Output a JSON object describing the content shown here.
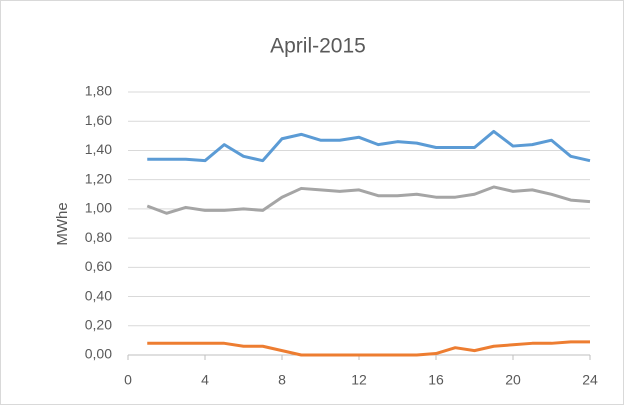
{
  "chart_data": {
    "type": "line",
    "title": "April-2015",
    "y_label": "MWhe",
    "x": [
      1,
      2,
      3,
      4,
      5,
      6,
      7,
      8,
      9,
      10,
      11,
      12,
      13,
      14,
      15,
      16,
      17,
      18,
      19,
      20,
      21,
      22,
      23,
      24
    ],
    "series": [
      {
        "color": "#5b9bd5",
        "values": [
          1.34,
          1.34,
          1.34,
          1.33,
          1.44,
          1.36,
          1.33,
          1.48,
          1.51,
          1.47,
          1.47,
          1.49,
          1.44,
          1.46,
          1.45,
          1.42,
          1.42,
          1.42,
          1.53,
          1.43,
          1.44,
          1.47,
          1.36,
          1.33
        ]
      },
      {
        "color": "#a5a5a5",
        "values": [
          1.02,
          0.97,
          1.01,
          0.99,
          0.99,
          1.0,
          0.99,
          1.08,
          1.14,
          1.13,
          1.12,
          1.13,
          1.09,
          1.09,
          1.1,
          1.08,
          1.08,
          1.1,
          1.15,
          1.12,
          1.13,
          1.1,
          1.06,
          1.05
        ]
      },
      {
        "color": "#ed7d31",
        "values": [
          0.08,
          0.08,
          0.08,
          0.08,
          0.08,
          0.06,
          0.06,
          0.03,
          0,
          0,
          0,
          0,
          0,
          0,
          0,
          0.01,
          0.05,
          0.03,
          0.06,
          0.07,
          0.08,
          0.08,
          0.09,
          0.09
        ]
      }
    ],
    "xlim": [
      0,
      24
    ],
    "xticks": [
      0,
      4,
      8,
      12,
      16,
      20,
      24
    ],
    "ylim": [
      0,
      1.8
    ],
    "yticks": [
      {
        "value": 0,
        "label": "0,00"
      },
      {
        "value": 0.2,
        "label": "0,20"
      },
      {
        "value": 0.4,
        "label": "0,40"
      },
      {
        "value": 0.6,
        "label": "0,60"
      },
      {
        "value": 0.8,
        "label": "0,80"
      },
      {
        "value": 1.0,
        "label": "1,00"
      },
      {
        "value": 1.2,
        "label": "1,20"
      },
      {
        "value": 1.4,
        "label": "1,40"
      },
      {
        "value": 1.6,
        "label": "1,60"
      },
      {
        "value": 1.8,
        "label": "1,80"
      }
    ],
    "grid": true
  }
}
